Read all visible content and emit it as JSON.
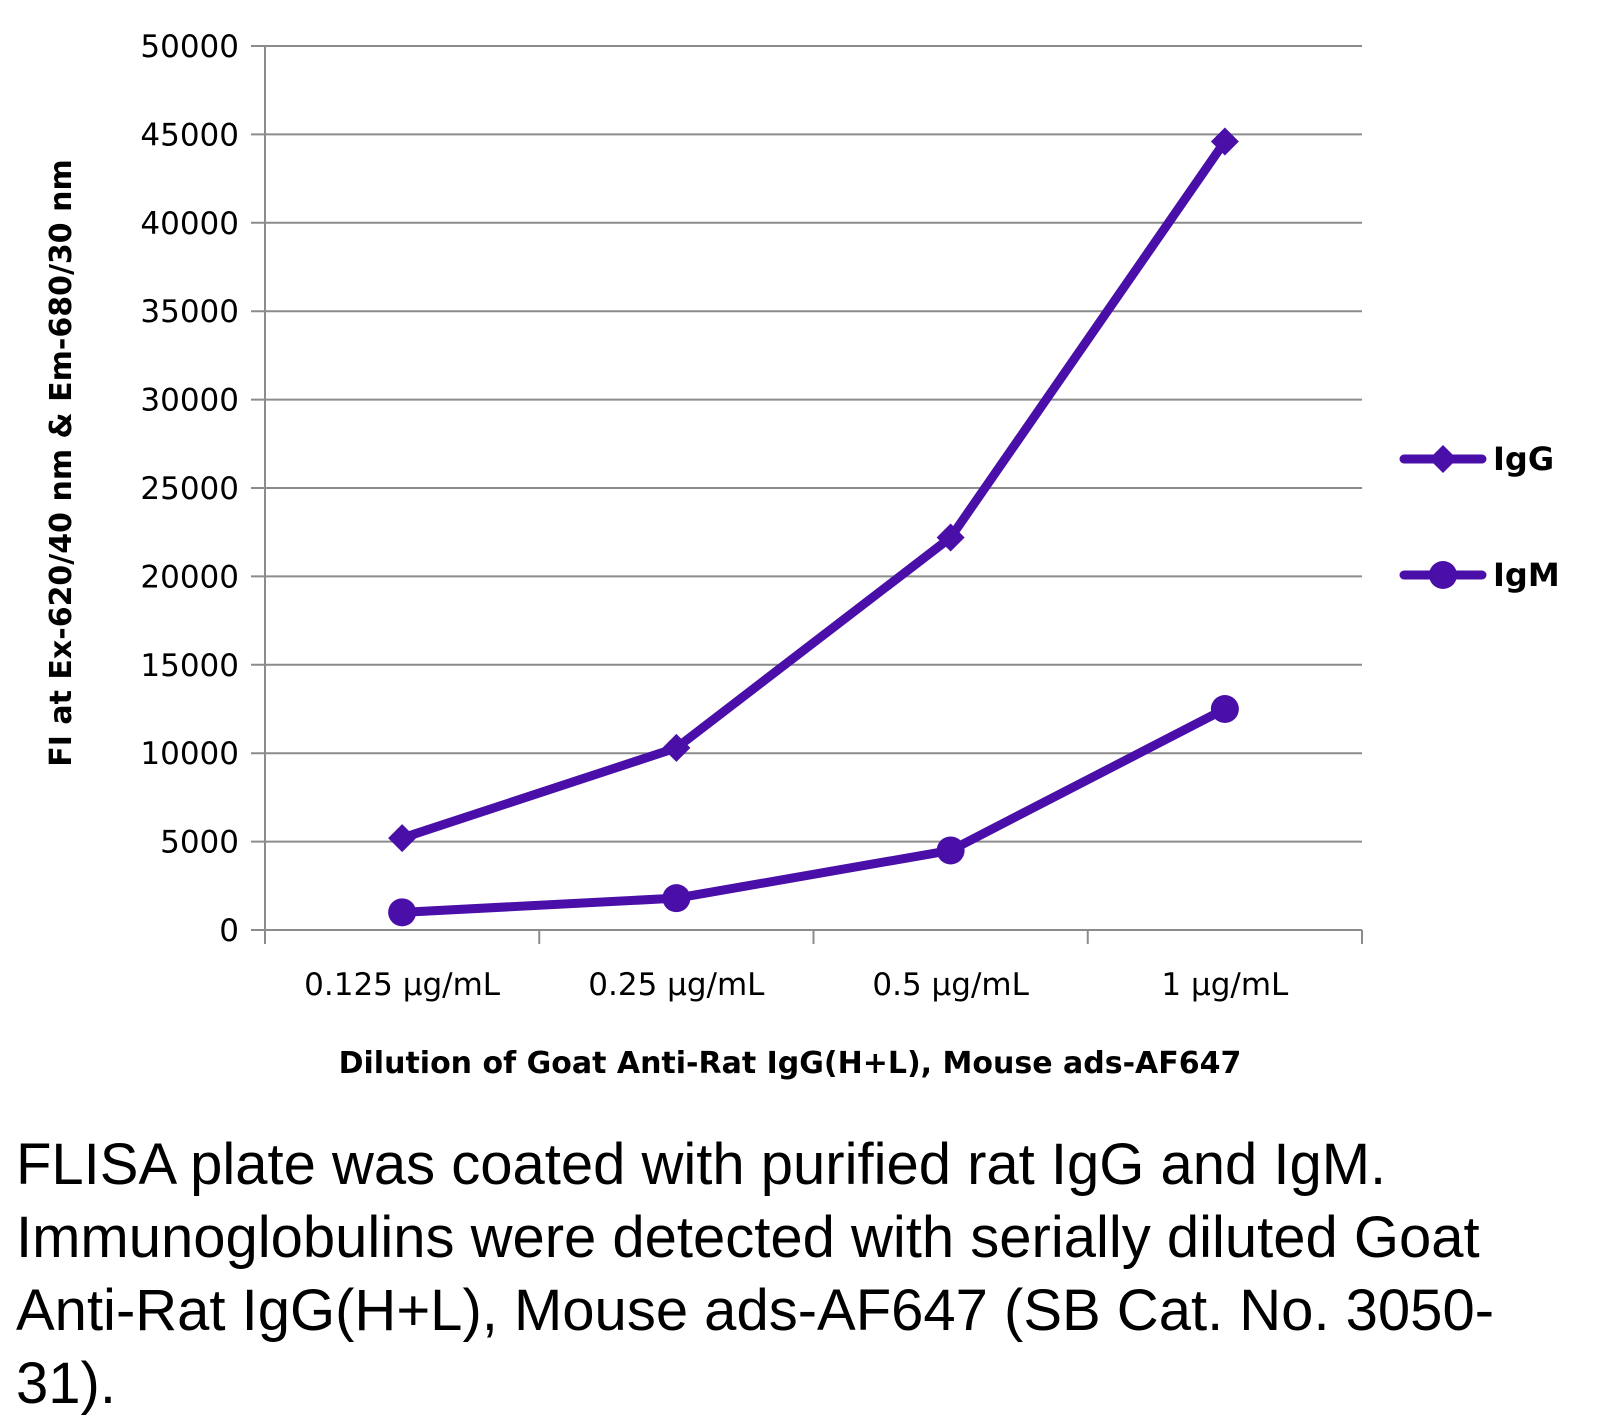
{
  "chart_data": {
    "type": "line",
    "title": "",
    "categories": [
      "0.125 µg/mL",
      "0.25 µg/mL",
      "0.5 µg/mL",
      "1 µg/mL"
    ],
    "series": [
      {
        "name": "IgG",
        "marker": "diamond",
        "values": [
          5200,
          10300,
          22200,
          44600
        ]
      },
      {
        "name": "IgM",
        "marker": "circle",
        "values": [
          1000,
          1800,
          4500,
          12500
        ]
      }
    ],
    "xlabel": "Dilution of Goat Anti-Rat IgG(H+L), Mouse ads-AF647",
    "ylabel": "FI at Ex-620/40 nm & Em-680/30 nm",
    "ylim": [
      0,
      50000
    ],
    "yticks": [
      "0",
      "5000",
      "10000",
      "15000",
      "20000",
      "25000",
      "30000",
      "35000",
      "40000",
      "45000",
      "50000"
    ],
    "grid": true,
    "legend": "right",
    "colors": {
      "series": "#4a0fa8",
      "grid": "#8c8c8c"
    }
  },
  "caption": "FLISA plate was coated with purified rat IgG and IgM.  Immunoglobulins were detected with serially diluted Goat Anti-Rat IgG(H+L), Mouse ads-AF647 (SB Cat. No. 3050-31)."
}
